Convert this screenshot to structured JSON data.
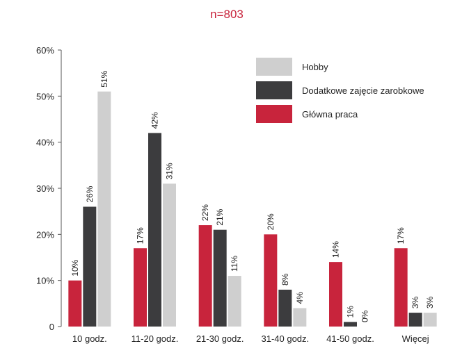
{
  "chart_data": {
    "type": "bar",
    "title": "",
    "subtitle": "n=803",
    "xlabel": "",
    "ylabel": "",
    "categories": [
      "10 godz.",
      "11-20 godz.",
      "21-30 godz.",
      "31-40 godz.",
      "41-50 godz.",
      "Więcej"
    ],
    "ylim": [
      0,
      60
    ],
    "yticks": [
      0,
      10,
      20,
      30,
      40,
      50,
      60
    ],
    "ytick_labels": [
      "0",
      "10%",
      "20%",
      "30%",
      "40%",
      "50%",
      "60%"
    ],
    "grid": false,
    "legend_position": "top-right",
    "series": [
      {
        "name": "Główna praca",
        "color": "#c8243c",
        "values": [
          10,
          17,
          22,
          20,
          14,
          17
        ],
        "labels": [
          "10%",
          "17%",
          "22%",
          "20%",
          "14%",
          "17%"
        ]
      },
      {
        "name": "Dodatkowe zajęcie zarobkowe",
        "color": "#3c3c3e",
        "values": [
          26,
          42,
          21,
          8,
          1,
          3
        ],
        "labels": [
          "26%",
          "42%",
          "21%",
          "8%",
          "1%",
          "3%"
        ]
      },
      {
        "name": "Hobby",
        "color": "#cfcfcf",
        "values": [
          51,
          31,
          11,
          4,
          0,
          3
        ],
        "labels": [
          "51%",
          "31%",
          "11%",
          "4%",
          "0%",
          "3%"
        ]
      }
    ],
    "legend_order": [
      "Hobby",
      "Dodatkowe zajęcie zarobkowe",
      "Główna praca"
    ],
    "subtitle_color": "#c8243c",
    "axis_color": "#555555"
  }
}
